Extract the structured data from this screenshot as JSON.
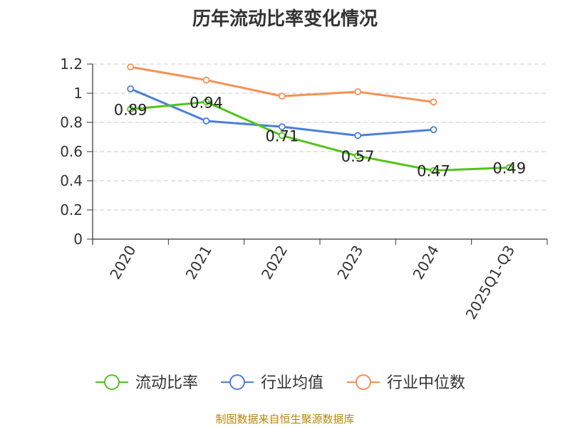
{
  "chart_data": {
    "type": "line",
    "title": "历年流动比率变化情况",
    "categories": [
      "2020",
      "2021",
      "2022",
      "2023",
      "2024",
      "2025Q1-Q3"
    ],
    "ylim": [
      0,
      1.2
    ],
    "yticks": [
      "0",
      "0.2",
      "0.4",
      "0.6",
      "0.8",
      "1",
      "1.2"
    ],
    "grid": true,
    "legend_position": "bottom",
    "series": [
      {
        "name": "流动比率",
        "color": "#52c41a",
        "values": [
          0.89,
          0.94,
          0.71,
          0.57,
          0.47,
          0.49
        ],
        "labels": [
          "0.89",
          "0.94",
          "0.71",
          "0.57",
          "0.47",
          "0.49"
        ]
      },
      {
        "name": "行业均值",
        "color": "#4a7fdc",
        "values": [
          1.03,
          0.81,
          0.77,
          0.71,
          0.75,
          null
        ]
      },
      {
        "name": "行业中位数",
        "color": "#f79055",
        "values": [
          1.18,
          1.09,
          0.98,
          1.01,
          0.94,
          null
        ]
      }
    ]
  },
  "source_text": "制图数据来自恒生聚源数据库"
}
